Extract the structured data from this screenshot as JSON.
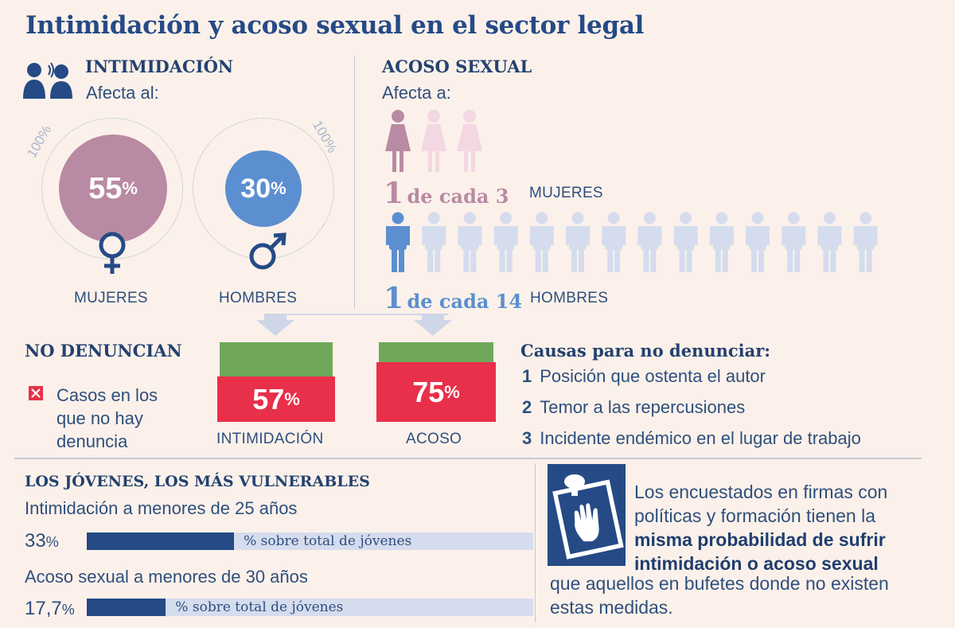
{
  "title": "Intimidación y acoso sexual en el sector legal",
  "intimidacion": {
    "heading": "INTIMIDACIÓN",
    "affects": "Afecta al:",
    "women_label": "MUJERES",
    "men_label": "HOMBRES",
    "hundred_left": "100%",
    "hundred_right": "100%"
  },
  "acoso": {
    "heading": "ACOSO SEXUAL",
    "affects": "Afecta a:",
    "women_ratio_num": "1",
    "women_ratio_text": "de cada 3",
    "women_label": "MUJERES",
    "men_ratio_num": "1",
    "men_ratio_text": "de cada 14",
    "men_label": "HOMBRES"
  },
  "no_denuncian": {
    "heading": "NO DENUNCIAN",
    "legend_lines": [
      "Casos en los",
      "que no hay",
      "denuncia"
    ],
    "bar1_label": "INTIMIDACIÓN",
    "bar2_label": "ACOSO"
  },
  "causas": {
    "heading": "Causas para no denunciar:",
    "items": [
      {
        "num": "1",
        "text": "Posición que ostenta el autor"
      },
      {
        "num": "2",
        "text": "Temor a las repercusiones"
      },
      {
        "num": "3",
        "text": "Incidente endémico en el lugar de trabajo"
      }
    ]
  },
  "jovenes": {
    "heading": "LOS JÓVENES, LOS MÁS VULNERABLES",
    "row1_title": "Intimidación a menores de 25 años",
    "row1_value": "33",
    "row1_note": "% sobre total de jóvenes",
    "row2_title": "Acoso sexual a menores de 30 años",
    "row2_value": "17,7",
    "row2_note": "% sobre total de jóvenes"
  },
  "box": {
    "line1": "Los encuestados en firmas con",
    "line2": "políticas y formación tienen la",
    "line3": "misma probabilidad de sufrir",
    "line4": "intimidación o acoso sexual",
    "line5": "que aquellos en bufetes donde no existen",
    "line6": "estas medidas."
  },
  "colors": {
    "navy": "#254a86",
    "women_pink": "#b98aa3",
    "men_blue": "#5b8fd0",
    "red": "#e8304a",
    "green": "#6fa85b",
    "light_blue": "#d5dcee"
  },
  "chart_data": [
    {
      "type": "pie",
      "title": "INTIMIDACIÓN",
      "categories": [
        "MUJERES",
        "HOMBRES"
      ],
      "values": [
        55,
        30
      ],
      "unit": "%"
    },
    {
      "type": "bar",
      "title": "ACOSO SEXUAL",
      "categories": [
        "MUJERES",
        "HOMBRES"
      ],
      "values": [
        3,
        14
      ],
      "ratio_text": [
        "1 de cada 3",
        "1 de cada 14"
      ]
    },
    {
      "type": "bar",
      "title": "NO DENUNCIAN",
      "categories": [
        "INTIMIDACIÓN",
        "ACOSO"
      ],
      "values": [
        57,
        75
      ],
      "unit": "%"
    },
    {
      "type": "bar",
      "title": "LOS JÓVENES, LOS MÁS VULNERABLES",
      "categories": [
        "Intimidación a menores de 25 años",
        "Acoso sexual a menores de 30 años"
      ],
      "values": [
        33,
        17.7
      ],
      "unit": "%"
    }
  ]
}
